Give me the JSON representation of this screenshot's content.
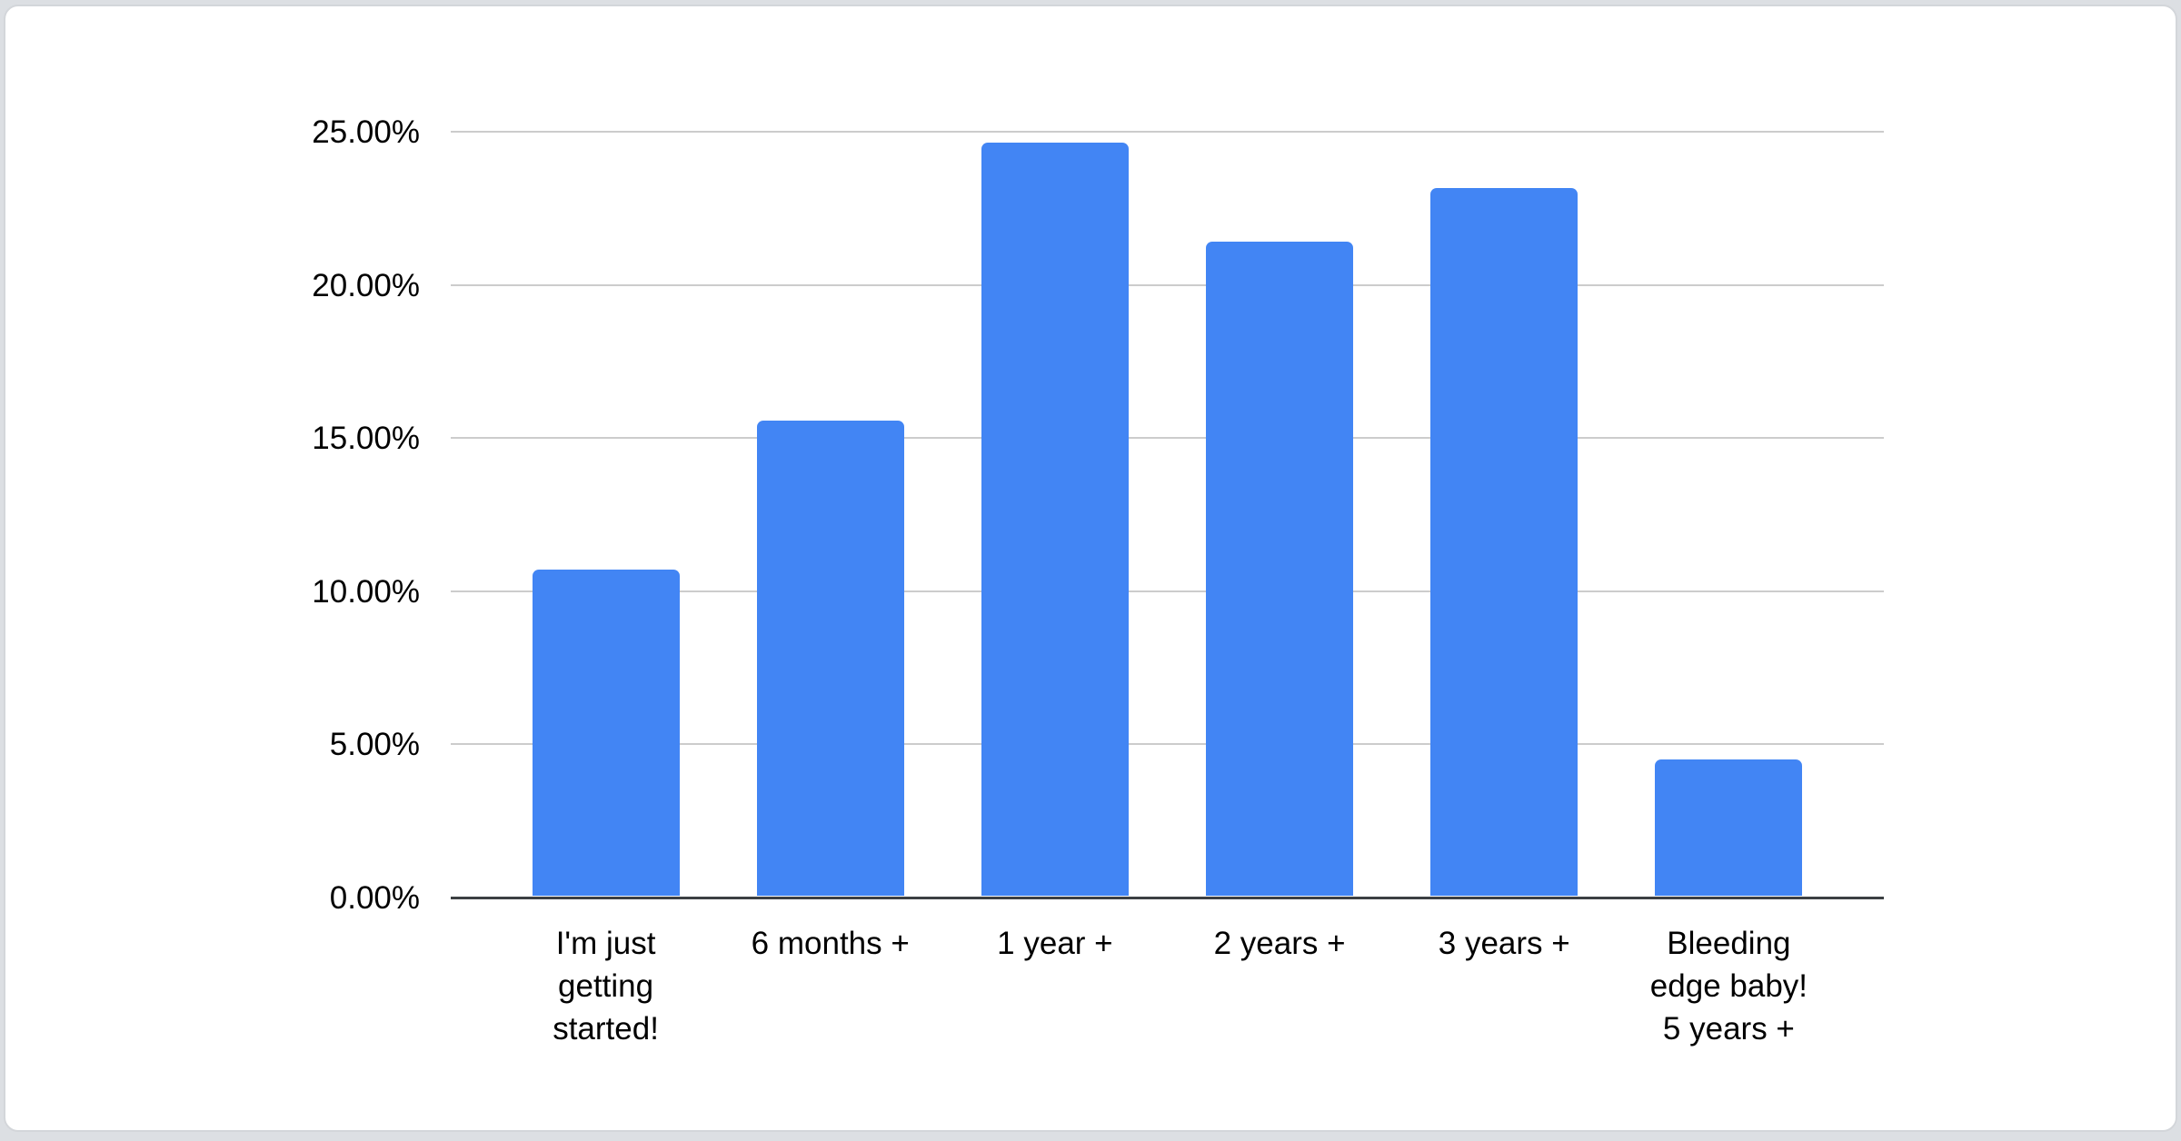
{
  "page": {
    "background_color": "#dcdfe3"
  },
  "card": {
    "background_color": "#ffffff",
    "border_color": "#d3d6da"
  },
  "chart_data": {
    "type": "bar",
    "title": "",
    "categories": [
      "I'm just getting started!",
      "6 months +",
      "1 year +",
      "2 years +",
      "3 years +",
      "Bleeding edge baby! 5 years +"
    ],
    "category_lines": [
      [
        "I'm just",
        "getting",
        "started!"
      ],
      [
        "6 months +"
      ],
      [
        "1 year +"
      ],
      [
        "2 years +"
      ],
      [
        "3 years +"
      ],
      [
        "Bleeding",
        "edge baby!",
        "5 years +"
      ]
    ],
    "values": [
      10.65,
      15.5,
      24.6,
      21.35,
      23.1,
      4.45
    ],
    "ylim": [
      0,
      25
    ],
    "ytick_values": [
      0,
      5,
      10,
      15,
      20,
      25
    ],
    "ytick_labels": [
      "0.00%",
      "5.00%",
      "10.00%",
      "15.00%",
      "20.00%",
      "25.00%"
    ],
    "grid": true,
    "legend": "none",
    "xlabel": "",
    "ylabel": "",
    "bar_color": "#4285f4",
    "gridline_color": "#cccccc",
    "axis_line_color": "#3c4043",
    "label_color": "#000000",
    "value_format": "percent"
  }
}
